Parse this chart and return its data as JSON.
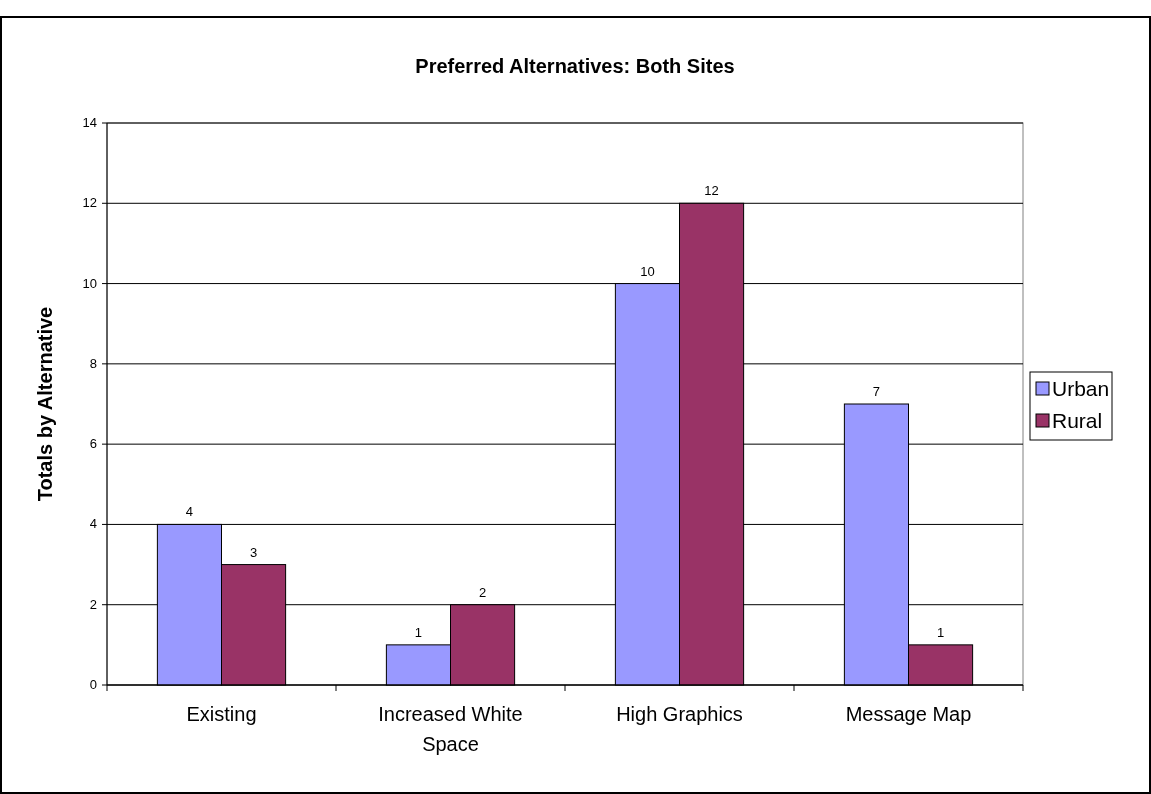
{
  "chart_data": {
    "type": "bar",
    "title": "Preferred Alternatives: Both Sites",
    "ylabel": "Totals by Alternative",
    "categories": [
      "Existing",
      "Increased White Space",
      "High Graphics",
      "Message Map"
    ],
    "series": [
      {
        "name": "Urban",
        "color": "#9999ff",
        "values": [
          4,
          1,
          10,
          7
        ]
      },
      {
        "name": "Rural",
        "color": "#993366",
        "values": [
          3,
          2,
          12,
          1
        ]
      }
    ],
    "ylim": [
      0,
      14
    ],
    "yticks": [
      0,
      2,
      4,
      6,
      8,
      10,
      12,
      14
    ],
    "grid": "y",
    "legend": "right",
    "data_labels": true
  }
}
